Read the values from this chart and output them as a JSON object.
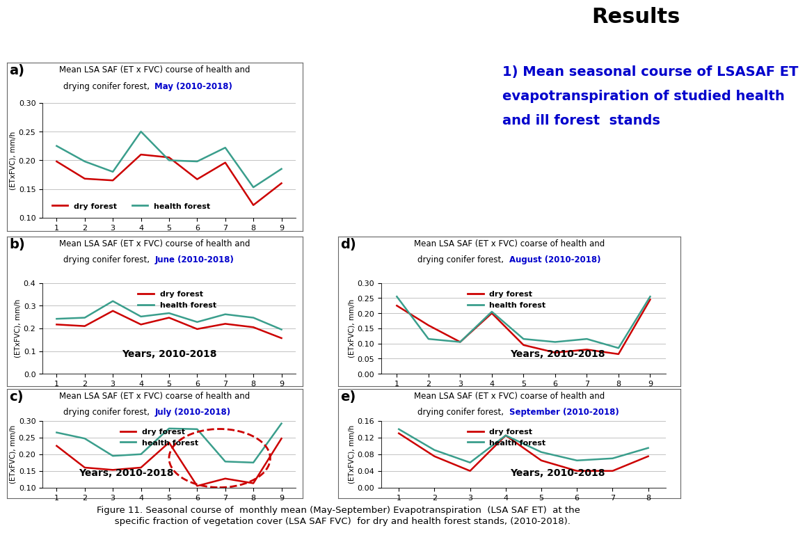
{
  "panel_a": {
    "title_line1": "Mean LSA SAF (ET x FVC) course of health and",
    "title_line2": "drying conifer forest,  ",
    "title_month": "May (2010-2018)",
    "dry": [
      0.198,
      0.168,
      0.165,
      0.21,
      0.205,
      0.167,
      0.196,
      0.122,
      0.16
    ],
    "health": [
      0.225,
      0.198,
      0.18,
      0.25,
      0.2,
      0.198,
      0.222,
      0.153,
      0.185
    ],
    "ylim": [
      0.1,
      0.3
    ],
    "yticks": [
      0.1,
      0.15,
      0.2,
      0.25,
      0.3
    ],
    "xvals": [
      1,
      2,
      3,
      4,
      5,
      6,
      7,
      8,
      9
    ]
  },
  "panel_b": {
    "title_line1": "Mean LSA SAF (ET x FVC) course of health and",
    "title_line2": "drying conifer forest,  ",
    "title_month": "June (2010-2018)",
    "dry": [
      0.217,
      0.21,
      0.277,
      0.217,
      0.247,
      0.197,
      0.22,
      0.205,
      0.157
    ],
    "health": [
      0.242,
      0.247,
      0.32,
      0.252,
      0.267,
      0.228,
      0.262,
      0.247,
      0.195
    ],
    "ylim": [
      0,
      0.4
    ],
    "yticks": [
      0,
      0.1,
      0.2,
      0.3,
      0.4
    ],
    "xvals": [
      1,
      2,
      3,
      4,
      5,
      6,
      7,
      8,
      9
    ],
    "xlabel": "Years, 2010-2018"
  },
  "panel_c": {
    "title_line1": "Mean LSA SAF (ET x FVC) coarse of health and",
    "title_line2": "drying conifer forest,  ",
    "title_month": "July (2010-2018)",
    "dry": [
      0.225,
      0.16,
      0.153,
      0.16,
      0.235,
      0.105,
      0.127,
      0.113,
      0.247
    ],
    "health": [
      0.265,
      0.247,
      0.195,
      0.2,
      0.277,
      0.275,
      0.178,
      0.175,
      0.292
    ],
    "ylim": [
      0.1,
      0.3
    ],
    "yticks": [
      0.1,
      0.15,
      0.2,
      0.25,
      0.3
    ],
    "xvals": [
      1,
      2,
      3,
      4,
      5,
      6,
      7,
      8,
      9
    ],
    "xlabel": "Years, 2010-2018"
  },
  "panel_d": {
    "title_line1": "Mean LSA SAF (ET x FVC) coarse of health and",
    "title_line2": "drying conifer forest,  ",
    "title_month": "August (2010-2018)",
    "dry": [
      0.225,
      0.16,
      0.105,
      0.2,
      0.095,
      0.07,
      0.08,
      0.065,
      0.245
    ],
    "health": [
      0.255,
      0.115,
      0.105,
      0.205,
      0.115,
      0.105,
      0.115,
      0.085,
      0.255
    ],
    "ylim": [
      0,
      0.3
    ],
    "yticks": [
      0,
      0.05,
      0.1,
      0.15,
      0.2,
      0.25,
      0.3
    ],
    "xvals": [
      1,
      2,
      3,
      4,
      5,
      6,
      7,
      8,
      9
    ],
    "xlabel": "Years, 2010-2018"
  },
  "panel_e": {
    "title_line1": "Mean LSA SAF (ET x FVC) coarse of health and",
    "title_line2": "drying conifer forest,  ",
    "title_month": "September (2010-2018)",
    "dry": [
      0.13,
      0.075,
      0.04,
      0.125,
      0.065,
      0.04,
      0.04,
      0.075
    ],
    "health": [
      0.14,
      0.09,
      0.06,
      0.125,
      0.085,
      0.065,
      0.07,
      0.095
    ],
    "ylim": [
      0,
      0.16
    ],
    "yticks": [
      0,
      0.04,
      0.08,
      0.12,
      0.16
    ],
    "xvals": [
      1,
      2,
      3,
      4,
      5,
      6,
      7,
      8
    ],
    "xlabel": "Years, 2010-2018"
  },
  "dry_color": "#cc0000",
  "health_color": "#3a9e8c",
  "title_color": "#0000cc",
  "results_text": "Results",
  "main_title_line1": "1) Mean seasonal course of LSASAF ET",
  "main_title_line2": "evapotranspiration of studied health",
  "main_title_line3": "and ill forest  stands",
  "figure_caption_line1": "Figure 11. Seasonal course of  monthly mean (May-September) Evapotranspiration  (LSA SAF ET)  at the",
  "figure_caption_line2": "   specific fraction of vegetation cover (LSA SAF FVC)  for dry and health forest stands, (2010-2018)."
}
